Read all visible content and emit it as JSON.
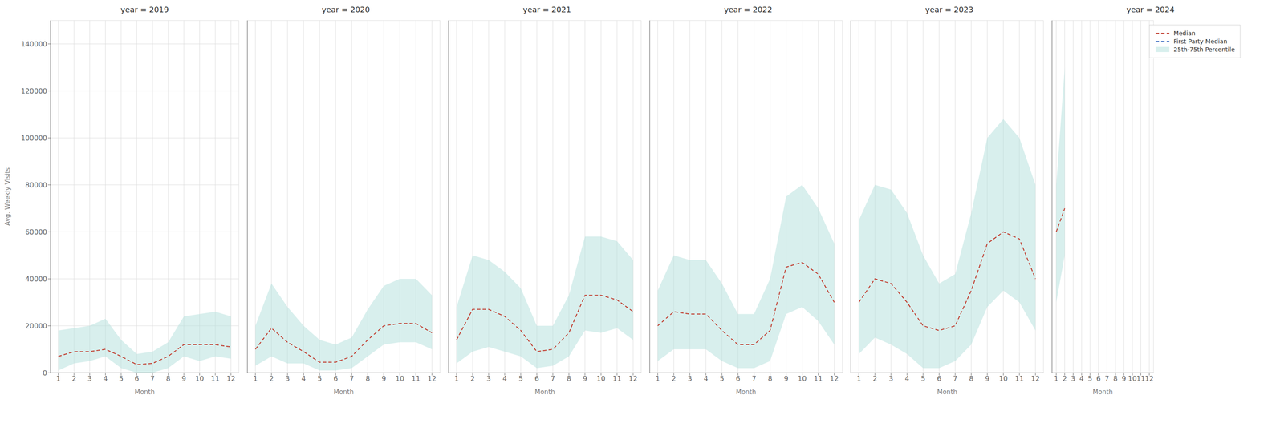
{
  "chart_data": [
    {
      "type": "line",
      "title": "year = 2019",
      "xlabel": "Month",
      "ylabel": "Avg. Weekly Visits",
      "x": [
        1,
        2,
        3,
        4,
        5,
        6,
        7,
        8,
        9,
        10,
        11,
        12
      ],
      "xlim": [
        0.5,
        12.5
      ],
      "xticks": [
        1,
        2,
        3,
        4,
        5,
        6,
        7,
        8,
        9,
        10,
        11,
        12
      ],
      "ylim": [
        0,
        150000
      ],
      "yticks": [
        0,
        20000,
        40000,
        60000,
        80000,
        100000,
        120000,
        140000
      ],
      "grid": true,
      "series": [
        {
          "name": "Median",
          "type": "line",
          "line_style": "dashed",
          "color": "#c0392b",
          "values": [
            7000,
            9000,
            9000,
            10000,
            7000,
            3500,
            4000,
            7000,
            12000,
            12000,
            12000,
            11000
          ]
        },
        {
          "name": "25th-75th Percentile",
          "type": "band",
          "color": "#b2dfdb",
          "lower": [
            1000,
            4000,
            5000,
            7000,
            2000,
            0,
            0,
            2000,
            7000,
            5000,
            7000,
            6000
          ],
          "upper": [
            18000,
            19000,
            20000,
            23000,
            14000,
            8000,
            9000,
            13000,
            24000,
            25000,
            26000,
            24000
          ]
        }
      ]
    },
    {
      "type": "line",
      "title": "year = 2020",
      "xlabel": "Month",
      "x": [
        1,
        2,
        3,
        4,
        5,
        6,
        7,
        8,
        9,
        10,
        11,
        12
      ],
      "xlim": [
        0.5,
        12.5
      ],
      "xticks": [
        1,
        2,
        3,
        4,
        5,
        6,
        7,
        8,
        9,
        10,
        11,
        12
      ],
      "ylim": [
        0,
        150000
      ],
      "yticks": [
        0,
        20000,
        40000,
        60000,
        80000,
        100000,
        120000,
        140000
      ],
      "grid": true,
      "tick_labels": "x",
      "series": [
        {
          "name": "Median",
          "type": "line",
          "line_style": "dashed",
          "color": "#c0392b",
          "values": [
            10000,
            19000,
            13000,
            9000,
            4500,
            4500,
            7000,
            14000,
            20000,
            21000,
            21000,
            17000
          ]
        },
        {
          "name": "25th-75th Percentile",
          "type": "band",
          "color": "#b2dfdb",
          "lower": [
            3000,
            7000,
            4000,
            4000,
            1000,
            1000,
            2000,
            7000,
            12000,
            13000,
            13000,
            10000
          ],
          "upper": [
            20000,
            38000,
            28000,
            20000,
            14000,
            12000,
            15000,
            27000,
            37000,
            40000,
            40000,
            33000
          ]
        }
      ]
    },
    {
      "type": "line",
      "title": "year = 2021",
      "xlabel": "Month",
      "x": [
        1,
        2,
        3,
        4,
        5,
        6,
        7,
        8,
        9,
        10,
        11,
        12
      ],
      "xlim": [
        0.5,
        12.5
      ],
      "xticks": [
        1,
        2,
        3,
        4,
        5,
        6,
        7,
        8,
        9,
        10,
        11,
        12
      ],
      "ylim": [
        0,
        150000
      ],
      "yticks": [
        0,
        20000,
        40000,
        60000,
        80000,
        100000,
        120000,
        140000
      ],
      "grid": true,
      "tick_labels": "x",
      "series": [
        {
          "name": "Median",
          "type": "line",
          "line_style": "dashed",
          "color": "#c0392b",
          "values": [
            14000,
            27000,
            27000,
            24000,
            18000,
            9000,
            10000,
            17000,
            33000,
            33000,
            31000,
            26000
          ]
        },
        {
          "name": "25th-75th Percentile",
          "type": "band",
          "color": "#b2dfdb",
          "lower": [
            4000,
            9000,
            11000,
            9000,
            7000,
            2000,
            3000,
            7000,
            18000,
            17000,
            19000,
            14000
          ],
          "upper": [
            28000,
            50000,
            48000,
            43000,
            36000,
            20000,
            20000,
            33000,
            58000,
            58000,
            56000,
            48000
          ]
        }
      ]
    },
    {
      "type": "line",
      "title": "year = 2022",
      "xlabel": "Month",
      "x": [
        1,
        2,
        3,
        4,
        5,
        6,
        7,
        8,
        9,
        10,
        11,
        12
      ],
      "xlim": [
        0.5,
        12.5
      ],
      "xticks": [
        1,
        2,
        3,
        4,
        5,
        6,
        7,
        8,
        9,
        10,
        11,
        12
      ],
      "ylim": [
        0,
        150000
      ],
      "yticks": [
        0,
        20000,
        40000,
        60000,
        80000,
        100000,
        120000,
        140000
      ],
      "grid": true,
      "tick_labels": "x",
      "series": [
        {
          "name": "Median",
          "type": "line",
          "line_style": "dashed",
          "color": "#c0392b",
          "values": [
            20000,
            26000,
            25000,
            25000,
            18000,
            12000,
            12000,
            18000,
            45000,
            47000,
            42000,
            30000
          ]
        },
        {
          "name": "25th-75th Percentile",
          "type": "band",
          "color": "#b2dfdb",
          "lower": [
            5000,
            10000,
            10000,
            10000,
            5000,
            2000,
            2000,
            5000,
            25000,
            28000,
            22000,
            12000
          ],
          "upper": [
            35000,
            50000,
            48000,
            48000,
            38000,
            25000,
            25000,
            40000,
            75000,
            80000,
            70000,
            55000
          ]
        }
      ]
    },
    {
      "type": "line",
      "title": "year = 2023",
      "xlabel": "Month",
      "x": [
        1,
        2,
        3,
        4,
        5,
        6,
        7,
        8,
        9,
        10,
        11,
        12
      ],
      "xlim": [
        0.5,
        12.5
      ],
      "xticks": [
        1,
        2,
        3,
        4,
        5,
        6,
        7,
        8,
        9,
        10,
        11,
        12
      ],
      "ylim": [
        0,
        150000
      ],
      "yticks": [
        0,
        20000,
        40000,
        60000,
        80000,
        100000,
        120000,
        140000
      ],
      "grid": true,
      "tick_labels": "x",
      "series": [
        {
          "name": "Median",
          "type": "line",
          "line_style": "dashed",
          "color": "#c0392b",
          "values": [
            30000,
            40000,
            38000,
            30000,
            20000,
            18000,
            20000,
            35000,
            55000,
            60000,
            57000,
            40000
          ]
        },
        {
          "name": "25th-75th Percentile",
          "type": "band",
          "color": "#b2dfdb",
          "lower": [
            8000,
            15000,
            12000,
            8000,
            2000,
            2000,
            5000,
            12000,
            28000,
            35000,
            30000,
            18000
          ],
          "upper": [
            65000,
            80000,
            78000,
            68000,
            50000,
            38000,
            42000,
            68000,
            100000,
            108000,
            100000,
            80000
          ]
        }
      ]
    },
    {
      "type": "line",
      "title": "year = 2024",
      "xlabel": "Month",
      "x": [
        1,
        2
      ],
      "xlim": [
        0.5,
        12.5
      ],
      "xticks": [
        1,
        2,
        3,
        4,
        5,
        6,
        7,
        8,
        9,
        10,
        11,
        12
      ],
      "ylim": [
        0,
        150000
      ],
      "yticks": [
        0,
        20000,
        40000,
        60000,
        80000,
        100000,
        120000,
        140000
      ],
      "grid": true,
      "tick_labels": "x",
      "legend": "upper right",
      "series": [
        {
          "name": "Median",
          "type": "line",
          "line_style": "dashed",
          "color": "#c0392b",
          "values": [
            60000,
            70000
          ]
        },
        {
          "name": "First Party Median",
          "type": "line",
          "line_style": "dashed",
          "color": "#4472c4",
          "values": [
            null,
            null
          ]
        },
        {
          "name": "25th-75th Percentile",
          "type": "band",
          "color": "#b2dfdb",
          "lower": [
            30000,
            50000
          ],
          "upper": [
            80000,
            130000
          ]
        }
      ]
    }
  ]
}
